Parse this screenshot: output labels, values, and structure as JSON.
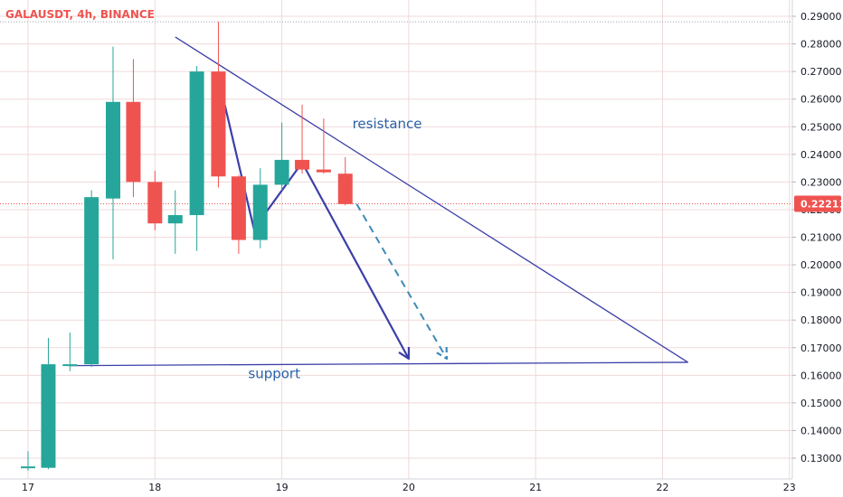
{
  "chart_data": {
    "type": "candlestick",
    "title": "GALAUSDT, 4h, BINANCE",
    "current_price": "0.22211",
    "colors": {
      "up": "#26a69a",
      "down": "#ef5350",
      "drawing": "#3c3fa8",
      "dashed": "#3d8bb8",
      "annotation": "#2962a8",
      "price_label_bg": "#ef5350",
      "grid": "#f0d9d9"
    },
    "ylim": [
      0.125,
      0.292
    ],
    "y_ticks": [
      "0.29000",
      "0.28000",
      "0.27000",
      "0.26000",
      "0.25000",
      "0.24000",
      "0.23000",
      "0.22000",
      "0.21000",
      "0.20000",
      "0.19000",
      "0.18000",
      "0.17000",
      "0.16000",
      "0.15000",
      "0.14000",
      "0.13000"
    ],
    "x_ticks": [
      {
        "label": "17",
        "x": 17.0
      },
      {
        "label": "18",
        "x": 18.0
      },
      {
        "label": "19",
        "x": 19.0
      },
      {
        "label": "20",
        "x": 20.0
      },
      {
        "label": "21",
        "x": 21.0
      },
      {
        "label": "22",
        "x": 22.0
      },
      {
        "label": "23",
        "x": 23.0
      }
    ],
    "xlim": [
      16.98,
      23.05
    ],
    "candles": [
      {
        "t": 17.0,
        "o": 0.1265,
        "h": 0.1325,
        "l": 0.1255,
        "c": 0.127
      },
      {
        "t": 17.16,
        "o": 0.1265,
        "h": 0.1735,
        "l": 0.126,
        "c": 0.164
      },
      {
        "t": 17.33,
        "o": 0.164,
        "h": 0.1755,
        "l": 0.1615,
        "c": 0.164
      },
      {
        "t": 17.5,
        "o": 0.164,
        "h": 0.227,
        "l": 0.163,
        "c": 0.2245
      },
      {
        "t": 17.67,
        "o": 0.224,
        "h": 0.279,
        "l": 0.202,
        "c": 0.259
      },
      {
        "t": 17.83,
        "o": 0.259,
        "h": 0.2745,
        "l": 0.2245,
        "c": 0.23
      },
      {
        "t": 18.0,
        "o": 0.23,
        "h": 0.234,
        "l": 0.2125,
        "c": 0.215
      },
      {
        "t": 18.16,
        "o": 0.215,
        "h": 0.227,
        "l": 0.204,
        "c": 0.218
      },
      {
        "t": 18.33,
        "o": 0.218,
        "h": 0.272,
        "l": 0.205,
        "c": 0.27
      },
      {
        "t": 18.5,
        "o": 0.27,
        "h": 0.288,
        "l": 0.228,
        "c": 0.232
      },
      {
        "t": 18.66,
        "o": 0.232,
        "h": 0.2325,
        "l": 0.204,
        "c": 0.209
      },
      {
        "t": 18.83,
        "o": 0.209,
        "h": 0.235,
        "l": 0.206,
        "c": 0.229
      },
      {
        "t": 19.0,
        "o": 0.229,
        "h": 0.2515,
        "l": 0.227,
        "c": 0.238
      },
      {
        "t": 19.16,
        "o": 0.238,
        "h": 0.258,
        "l": 0.233,
        "c": 0.2345
      },
      {
        "t": 19.33,
        "o": 0.2345,
        "h": 0.253,
        "l": 0.233,
        "c": 0.2335
      },
      {
        "t": 19.5,
        "o": 0.233,
        "h": 0.239,
        "l": 0.2215,
        "c": 0.222
      }
    ],
    "drawings": {
      "resistance_line": {
        "from": {
          "t": 18.16,
          "p": 0.2825
        },
        "to": {
          "t": 22.2,
          "p": 0.1647
        }
      },
      "support_line": {
        "from": {
          "t": 17.33,
          "p": 0.1635
        },
        "to": {
          "t": 22.2,
          "p": 0.1647
        }
      },
      "solid_path": [
        {
          "t": 18.55,
          "p": 0.258
        },
        {
          "t": 18.78,
          "p": 0.213
        },
        {
          "t": 19.16,
          "p": 0.237
        },
        {
          "t": 20.0,
          "p": 0.166
        }
      ],
      "dashed_path": [
        {
          "t": 19.59,
          "p": 0.222
        },
        {
          "t": 20.3,
          "p": 0.166
        }
      ]
    },
    "annotations": [
      {
        "text": "resistance",
        "t": 19.83,
        "p": 0.2495
      },
      {
        "text": "support",
        "t": 18.94,
        "p": 0.159
      }
    ]
  }
}
